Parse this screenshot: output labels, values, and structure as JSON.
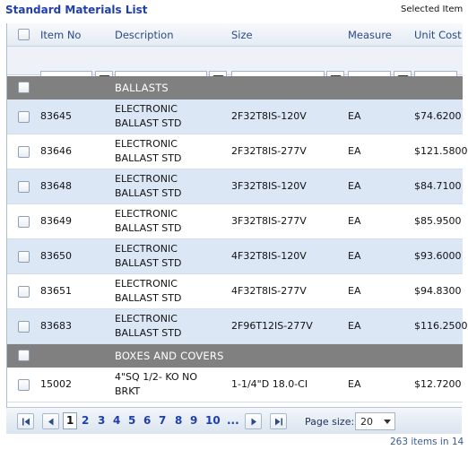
{
  "title": "Standard Materials List",
  "selected_label": "Selected Item",
  "columns": {
    "item_no": "Item No",
    "description": "Description",
    "size": "Size",
    "measure": "Measure",
    "unit_cost": "Unit Cost"
  },
  "groups": [
    {
      "name": "BALLASTS",
      "rows": [
        {
          "item": "83645",
          "desc1": "ELECTRONIC",
          "desc2": "BALLAST STD",
          "size": "2F32T8IS-120V",
          "measure": "EA",
          "cost": "$74.6200"
        },
        {
          "item": "83646",
          "desc1": "ELECTRONIC",
          "desc2": "BALLAST STD",
          "size": "2F32T8IS-277V",
          "measure": "EA",
          "cost": "$121.5800"
        },
        {
          "item": "83648",
          "desc1": "ELECTRONIC",
          "desc2": "BALLAST STD",
          "size": "3F32T8IS-120V",
          "measure": "EA",
          "cost": "$84.7100"
        },
        {
          "item": "83649",
          "desc1": "ELECTRONIC",
          "desc2": "BALLAST STD",
          "size": "3F32T8IS-277V",
          "measure": "EA",
          "cost": "$85.9500"
        },
        {
          "item": "83650",
          "desc1": "ELECTRONIC",
          "desc2": "BALLAST STD",
          "size": "4F32T8IS-120V",
          "measure": "EA",
          "cost": "$93.6000"
        },
        {
          "item": "83651",
          "desc1": "ELECTRONIC",
          "desc2": "BALLAST STD",
          "size": "4F32T8IS-277V",
          "measure": "EA",
          "cost": "$94.8300"
        },
        {
          "item": "83683",
          "desc1": "ELECTRONIC",
          "desc2": "BALLAST STD",
          "size": "2F96T12IS-277V",
          "measure": "EA",
          "cost": "$116.2500"
        }
      ]
    },
    {
      "name": "BOXES AND COVERS",
      "rows": [
        {
          "item": "15002",
          "desc1": "4\"SQ 1/2- KO NO",
          "desc2": "BRKT",
          "size": "1-1/4\"D 18.0-CI",
          "measure": "EA",
          "cost": "$12.7200"
        }
      ]
    }
  ],
  "pager": {
    "pages": [
      "1",
      "2",
      "3",
      "4",
      "5",
      "6",
      "7",
      "8",
      "9",
      "10",
      "..."
    ],
    "current": "1",
    "page_size_label": "Page size:",
    "page_size": "20"
  },
  "count_text": "263 items in 14"
}
